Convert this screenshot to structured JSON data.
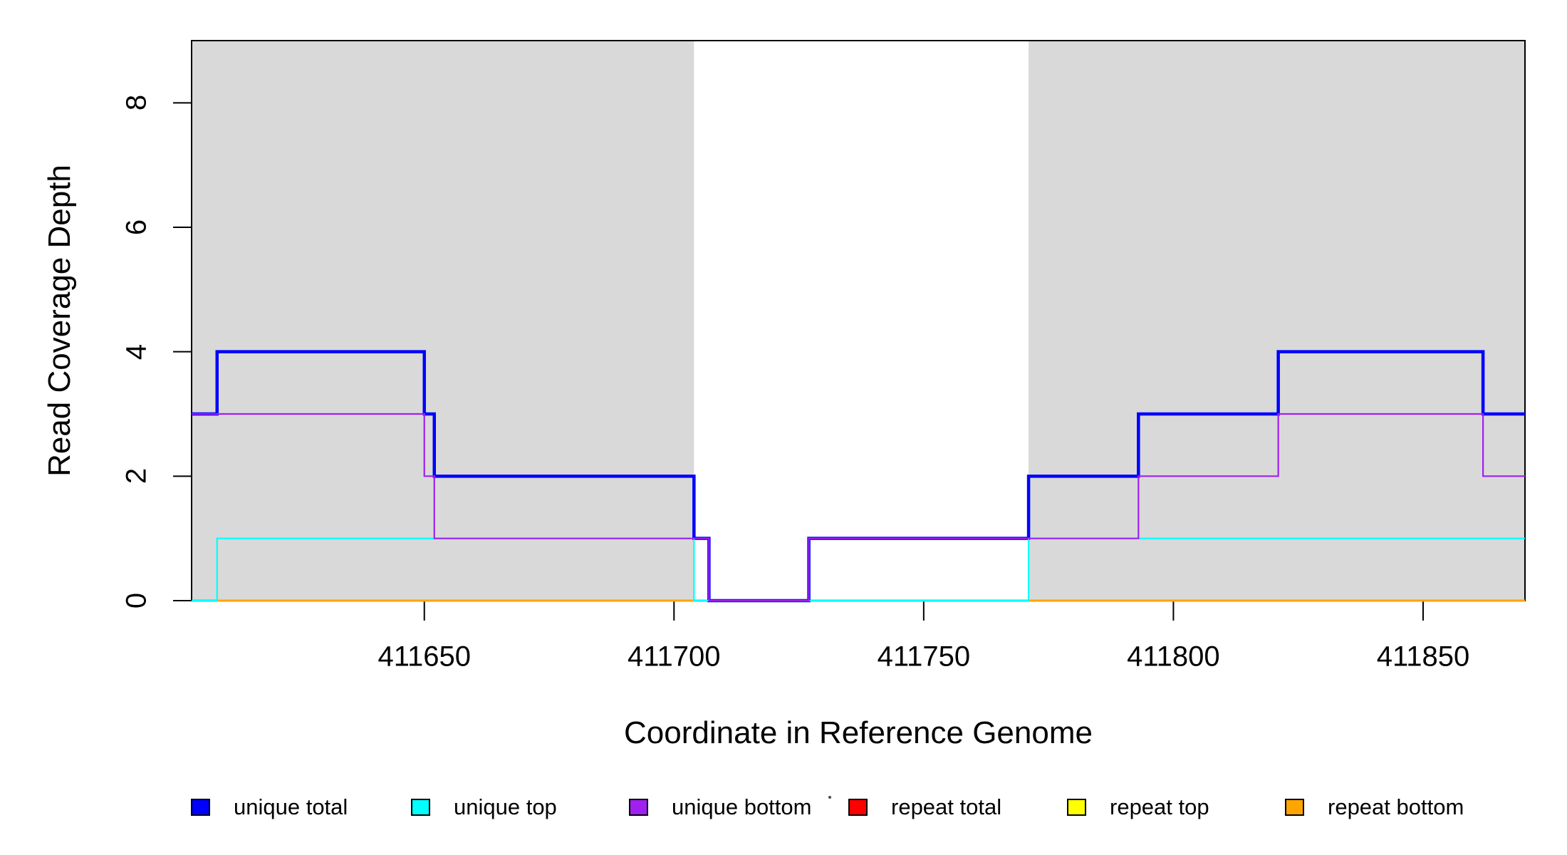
{
  "chart_data": {
    "type": "line",
    "step": true,
    "title": "",
    "xlabel": "Coordinate in Reference Genome",
    "ylabel": "Read Coverage Depth",
    "xlim": [
      411603.4,
      411870.4
    ],
    "ylim": [
      0,
      9
    ],
    "x_ticks": [
      "411650",
      "411700",
      "411750",
      "411800",
      "411850"
    ],
    "x_tick_values": [
      411650,
      411700,
      411750,
      411800,
      411850
    ],
    "y_ticks": [
      "0",
      "2",
      "4",
      "6",
      "8"
    ],
    "y_tick_values": [
      0,
      2,
      4,
      6,
      8
    ],
    "grid": false,
    "legend_position": "bottom",
    "plot_background": "#ffffff",
    "shaded_regions": {
      "color": "#d9d9d9",
      "intervals": [
        [
          411603.4,
          411704
        ],
        [
          411771,
          411870.4
        ]
      ]
    },
    "series": [
      {
        "name": "unique total",
        "color": "#0000ff",
        "line_width": 4.5,
        "steps": [
          [
            411603.4,
            3
          ],
          [
            411608.5,
            4
          ],
          [
            411650,
            3
          ],
          [
            411652,
            2
          ],
          [
            411704,
            1
          ],
          [
            411707,
            0
          ],
          [
            411727,
            1
          ],
          [
            411771,
            2
          ],
          [
            411793,
            3
          ],
          [
            411821,
            4
          ],
          [
            411862,
            3
          ]
        ]
      },
      {
        "name": "unique top",
        "color": "#00ffff",
        "line_width": 2.2,
        "steps": [
          [
            411603.4,
            0
          ],
          [
            411608.5,
            1
          ],
          [
            411704,
            0
          ],
          [
            411771,
            1
          ]
        ]
      },
      {
        "name": "unique bottom",
        "color": "#a020f0",
        "line_width": 2.2,
        "steps": [
          [
            411603.4,
            3
          ],
          [
            411650,
            2
          ],
          [
            411652,
            1
          ],
          [
            411707,
            0
          ],
          [
            411727,
            1
          ],
          [
            411793,
            2
          ],
          [
            411821,
            3
          ],
          [
            411862,
            2
          ]
        ]
      },
      {
        "name": "repeat total",
        "color": "#ff0000",
        "line_width": 2,
        "steps": [
          [
            411603.4,
            0
          ]
        ]
      },
      {
        "name": "repeat top",
        "color": "#ffff00",
        "line_width": 2,
        "steps": [
          [
            411603.4,
            0
          ]
        ]
      },
      {
        "name": "repeat bottom",
        "color": "#ffa500",
        "line_width": 3,
        "steps": [
          [
            411603.4,
            0
          ]
        ]
      }
    ],
    "zero_line_blend": {
      "color": "#6b8e4e",
      "line_width": 2.4,
      "intervals": [
        [
          411603.4,
          411608.5
        ],
        [
          411704,
          411771
        ]
      ]
    },
    "axis_color": "#000000"
  },
  "legend_items": [
    {
      "label": "unique total",
      "color": "#0000ff"
    },
    {
      "label": "unique top",
      "color": "#00ffff"
    },
    {
      "label": "unique bottom",
      "color": "#a020f0"
    },
    {
      "label": "repeat total",
      "color": "#ff0000"
    },
    {
      "label": "repeat top",
      "color": "#ffff00"
    },
    {
      "label": "repeat bottom",
      "color": "#ffa500"
    }
  ]
}
